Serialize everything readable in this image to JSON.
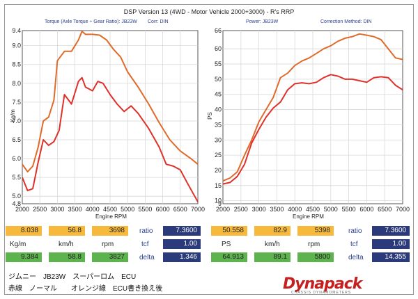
{
  "title": "DSP Version 13 (4WD - Motor Vehicle 2000+3000) - R's  RRP",
  "left_panel": {
    "header_left": "Torque (Axle Torque ÷ Gear Ratio): JB23W",
    "header_right": "Corr: DIN",
    "ylabel": "Kg/m",
    "xlabel": "Engine RPM"
  },
  "right_panel": {
    "header_left": "Power: JB23W",
    "header_right": "Correction Method: DIN",
    "ylabel": "PS",
    "xlabel": "Engine RPM"
  },
  "chart_data": [
    {
      "type": "line",
      "xlabel": "Engine RPM",
      "ylabel": "Kg/m",
      "xlim": [
        2000,
        7000
      ],
      "ylim": [
        4.8,
        9.4
      ],
      "xticks": [
        2000,
        2500,
        3000,
        3500,
        4000,
        4500,
        5000,
        5500,
        6000,
        6500,
        7000
      ],
      "yticks": [
        4.8,
        5.0,
        5.5,
        6.0,
        6.5,
        7.0,
        7.5,
        8.0,
        8.5,
        9.0,
        9.4
      ],
      "ytick_labels": [
        "4.8",
        "5.0",
        "5.5",
        "6.0",
        "6.5",
        "7.0",
        "7.5",
        "8.0",
        "8.5",
        "9.0",
        "9.4"
      ],
      "grid": true,
      "series": [
        {
          "color": "#e06a2a",
          "x": [
            2000,
            2150,
            2300,
            2450,
            2600,
            2750,
            2900,
            3000,
            3200,
            3400,
            3600,
            3700,
            3800,
            4000,
            4200,
            4400,
            4600,
            4800,
            5000,
            5300,
            5600,
            5900,
            6200,
            6500,
            6800,
            7000
          ],
          "y": [
            5.85,
            5.65,
            5.8,
            6.3,
            7.0,
            7.1,
            7.55,
            8.6,
            8.85,
            8.85,
            9.15,
            9.38,
            9.3,
            9.3,
            9.28,
            9.15,
            8.9,
            8.7,
            8.3,
            7.9,
            7.45,
            6.95,
            6.5,
            6.2,
            6.0,
            5.85
          ]
        },
        {
          "color": "#e0302a",
          "x": [
            2000,
            2150,
            2300,
            2450,
            2600,
            2750,
            2900,
            3050,
            3200,
            3400,
            3600,
            3700,
            3800,
            4000,
            4150,
            4300,
            4500,
            4700,
            4900,
            5100,
            5300,
            5600,
            5900,
            6100,
            6300,
            6500,
            6700,
            7000
          ],
          "y": [
            5.5,
            5.15,
            5.2,
            5.9,
            6.5,
            6.35,
            6.45,
            6.75,
            7.7,
            7.45,
            8.05,
            8.15,
            7.9,
            7.8,
            8.05,
            8.0,
            7.7,
            7.45,
            7.25,
            7.4,
            7.2,
            6.8,
            6.3,
            5.85,
            5.8,
            5.7,
            5.35,
            4.85
          ]
        }
      ]
    },
    {
      "type": "line",
      "xlabel": "Engine RPM",
      "ylabel": "PS",
      "xlim": [
        2000,
        7000
      ],
      "ylim": [
        9,
        66
      ],
      "xticks": [
        2000,
        2500,
        3000,
        3500,
        4000,
        4500,
        5000,
        5500,
        6000,
        6500,
        7000
      ],
      "yticks": [
        9,
        10,
        15,
        20,
        25,
        30,
        35,
        40,
        45,
        50,
        55,
        60,
        66
      ],
      "ytick_labels": [
        "9",
        "10",
        "15",
        "20",
        "25",
        "30",
        "35",
        "40",
        "45",
        "50",
        "55",
        "60",
        "66"
      ],
      "grid": true,
      "series": [
        {
          "color": "#e06a2a",
          "x": [
            2000,
            2200,
            2400,
            2600,
            2800,
            3000,
            3200,
            3400,
            3600,
            3800,
            4000,
            4200,
            4400,
            4600,
            4800,
            5000,
            5200,
            5400,
            5600,
            5800,
            6000,
            6200,
            6400,
            6600,
            6800,
            7000
          ],
          "y": [
            16.5,
            17.5,
            19.5,
            25.0,
            30.0,
            36.0,
            40.0,
            44.0,
            50.5,
            52.0,
            54.5,
            56.0,
            57.0,
            58.5,
            60.0,
            61.0,
            62.5,
            63.5,
            64.0,
            64.9,
            64.5,
            64.0,
            63.0,
            60.0,
            57.0,
            56.5
          ]
        },
        {
          "color": "#e0302a",
          "x": [
            2000,
            2200,
            2400,
            2600,
            2800,
            3000,
            3200,
            3400,
            3600,
            3800,
            4000,
            4200,
            4400,
            4600,
            4800,
            5000,
            5200,
            5400,
            5600,
            5800,
            6000,
            6200,
            6400,
            6600,
            6800,
            7000
          ],
          "y": [
            15.5,
            16.0,
            18.0,
            22.0,
            29.0,
            33.5,
            37.5,
            40.5,
            42.5,
            46.5,
            48.5,
            48.8,
            48.5,
            49.0,
            50.5,
            51.5,
            51.0,
            50.0,
            50.0,
            49.5,
            49.0,
            50.5,
            50.8,
            50.5,
            48.0,
            46.5
          ]
        }
      ]
    }
  ],
  "stats_left": {
    "row1": [
      "8.038",
      "56.8",
      "3698"
    ],
    "row2": [
      "9.384",
      "58.8",
      "3827"
    ],
    "units": [
      "Kg/m",
      "km/h",
      "rpm"
    ],
    "ratio_label": "ratio",
    "ratio_value": "7.3600",
    "tcf_label": "tcf",
    "tcf_value": "1.00",
    "delta_label": "delta",
    "delta_value": "1.346"
  },
  "stats_right": {
    "row1": [
      "50.558",
      "82.9",
      "5398"
    ],
    "row2": [
      "64.913",
      "89.1",
      "5800"
    ],
    "units": [
      "PS",
      "km/h",
      "rpm"
    ],
    "ratio_label": "ratio",
    "ratio_value": "7.3600",
    "tcf_label": "tcf",
    "tcf_value": "1.00",
    "delta_label": "delta",
    "delta_value": "14.355"
  },
  "notes": {
    "line1": "ジムニー　JB23W　スーパーロム　ECU",
    "line2": "赤線　ノーマル　　オレンジ線　ECU書き換え後"
  },
  "logo": {
    "name": "Dynapack",
    "sub": "CHASSIS DYNAMOMETERS"
  }
}
